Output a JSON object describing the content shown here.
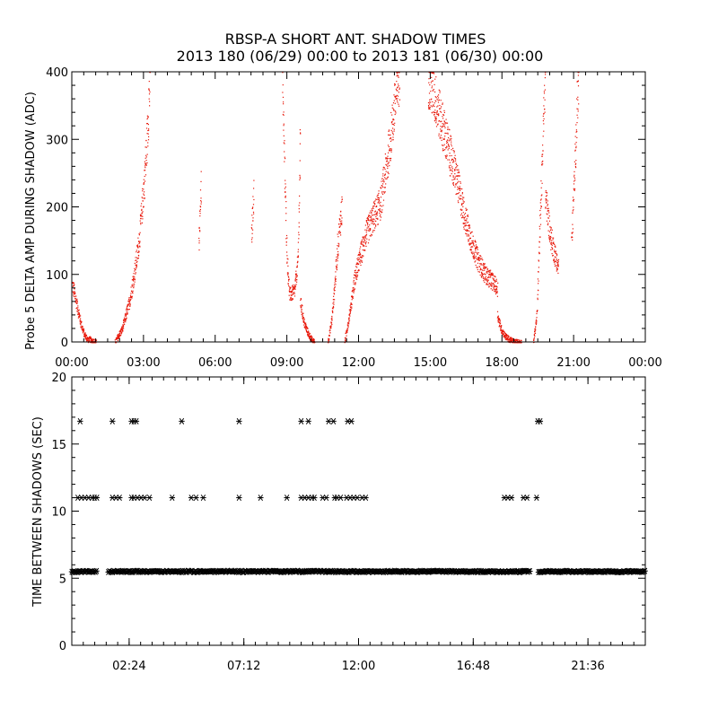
{
  "title": "RBSP-A SHORT ANT. SHADOW TIMES",
  "subtitle": "2013 180 (06/29) 00:00 to 2013 181 (06/30) 00:00",
  "colors": {
    "points": "#e8190c",
    "stars": "#000000",
    "axes": "#000000"
  },
  "chart_data": [
    {
      "type": "scatter",
      "id": "top",
      "ylabel": "Probe 5 DELTA AMP DURING SHADOW (ADC)",
      "xlim_hours": [
        0,
        24
      ],
      "ylim": [
        0,
        400
      ],
      "x_ticks": [
        "00:00",
        "03:00",
        "06:00",
        "09:00",
        "12:00",
        "15:00",
        "18:00",
        "21:00",
        "00:00"
      ],
      "y_ticks": [
        0,
        100,
        200,
        300,
        400
      ],
      "marker": "dot",
      "segments": [
        {
          "x": [
            0.0,
            0.08,
            0.2,
            0.35,
            0.5,
            0.7
          ],
          "y": [
            85,
            75,
            55,
            30,
            12,
            2
          ]
        },
        {
          "x": [
            0.7,
            0.85,
            1.0
          ],
          "y": [
            5,
            2,
            0
          ]
        },
        {
          "x": [
            1.8,
            2.1,
            2.4,
            2.6,
            2.8,
            3.0,
            3.15,
            3.25
          ],
          "y": [
            0,
            20,
            60,
            100,
            150,
            230,
            310,
            390
          ]
        },
        {
          "x": [
            5.3,
            5.35,
            5.4
          ],
          "y": [
            140,
            190,
            230
          ]
        },
        {
          "x": [
            7.5,
            7.55,
            7.6
          ],
          "y": [
            150,
            190,
            225
          ]
        },
        {
          "x": [
            8.8,
            8.9,
            9.0,
            9.1,
            9.3,
            9.45,
            9.55
          ],
          "y": [
            400,
            240,
            120,
            70,
            75,
            120,
            300
          ]
        },
        {
          "x": [
            9.55,
            9.7,
            9.85,
            10.0,
            10.15
          ],
          "y": [
            60,
            30,
            15,
            5,
            0
          ]
        },
        {
          "x": [
            10.7,
            10.85,
            11.0,
            11.15,
            11.3
          ],
          "y": [
            0,
            30,
            90,
            160,
            200
          ]
        },
        {
          "x": [
            11.4,
            11.6,
            11.8,
            12.0,
            12.3,
            12.6,
            12.9,
            13.2,
            13.5,
            13.7
          ],
          "y": [
            0,
            40,
            90,
            120,
            160,
            185,
            205,
            270,
            350,
            400
          ]
        },
        {
          "x": [
            14.9,
            15.2,
            15.5,
            15.8,
            16.1,
            16.4,
            16.7,
            17.0,
            17.3,
            17.6,
            17.8
          ],
          "y": [
            390,
            360,
            320,
            280,
            240,
            190,
            150,
            120,
            100,
            90,
            80
          ]
        },
        {
          "x": [
            17.8,
            17.95,
            18.1,
            18.3,
            18.5,
            18.8
          ],
          "y": [
            40,
            20,
            10,
            4,
            1,
            0
          ]
        },
        {
          "x": [
            19.3,
            19.45,
            19.6,
            19.8
          ],
          "y": [
            0,
            40,
            200,
            400
          ]
        },
        {
          "x": [
            19.8,
            20.0,
            20.2,
            20.35
          ],
          "y": [
            220,
            160,
            130,
            110
          ]
        },
        {
          "x": [
            20.9,
            21.0,
            21.1,
            21.2
          ],
          "y": [
            150,
            230,
            320,
            400
          ]
        }
      ]
    },
    {
      "type": "scatter",
      "id": "bottom",
      "ylabel": "TIME BETWEEN SHADOWS (SEC)",
      "xlim_hours": [
        0,
        24
      ],
      "ylim": [
        0,
        20
      ],
      "x_tick_hours": [
        2.4,
        7.2,
        12.0,
        16.8,
        21.6
      ],
      "x_ticks": [
        "02:24",
        "07:12",
        "12:00",
        "16:48",
        "21:36"
      ],
      "y_ticks": [
        0,
        5,
        10,
        15,
        20
      ],
      "marker": "star",
      "baseline_value": 5.5,
      "baseline_gaps": [
        [
          1.05,
          1.5
        ],
        [
          19.2,
          19.5
        ]
      ],
      "level_11_hours": [
        0.25,
        0.4,
        0.55,
        0.7,
        0.85,
        0.95,
        1.05,
        1.7,
        1.85,
        2.0,
        2.5,
        2.6,
        2.75,
        2.9,
        3.05,
        3.25,
        4.2,
        5.0,
        5.2,
        5.5,
        7.0,
        7.9,
        9.0,
        9.6,
        9.75,
        9.9,
        10.05,
        10.15,
        10.5,
        10.65,
        11.0,
        11.1,
        11.25,
        11.5,
        11.65,
        11.8,
        11.95,
        12.15,
        12.3,
        18.1,
        18.25,
        18.4,
        18.9,
        19.05,
        19.45
      ],
      "level_16_7_hours": [
        0.35,
        1.7,
        2.5,
        2.6,
        2.7,
        4.6,
        7.0,
        9.6,
        9.9,
        10.75,
        10.95,
        11.55,
        11.7,
        19.5,
        19.6
      ]
    }
  ]
}
